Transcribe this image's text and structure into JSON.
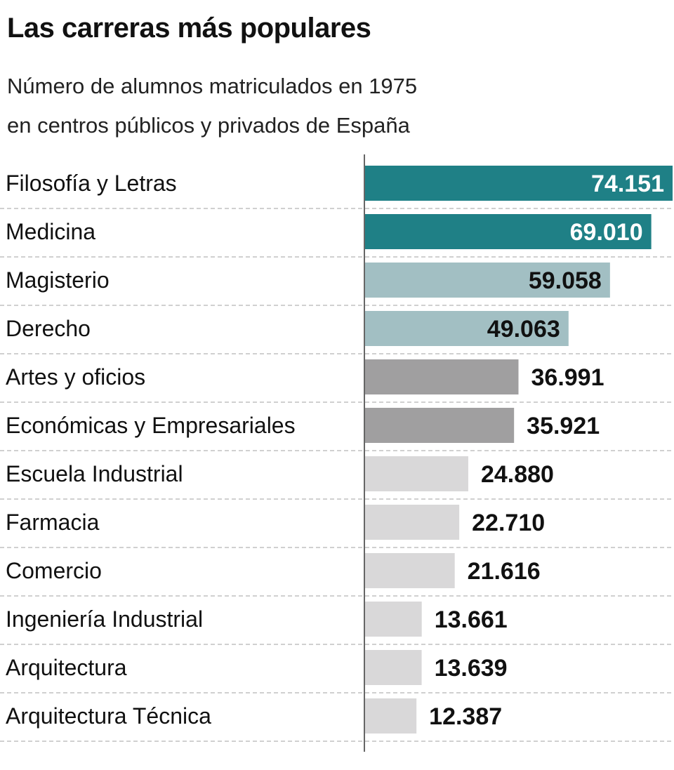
{
  "header": {
    "title": "Las carreras más populares",
    "subtitle_line1": "Número de alumnos matriculados en 1975",
    "subtitle_line2": "en centros públicos y privados de España"
  },
  "colors": {
    "top": "#1f8086",
    "second": "#a2bfc3",
    "third": "#a09fa0",
    "rest": "#d9d8d9",
    "gridline": "#b5b5b5",
    "axis": "#666666"
  },
  "chart_data": {
    "type": "bar",
    "orientation": "horizontal",
    "title": "Las carreras más populares",
    "subtitle": "Número de alumnos matriculados en 1975 en centros públicos y privados de España",
    "xlabel": "",
    "ylabel": "",
    "xlim": [
      0,
      74151
    ],
    "grid": "dashed row separators",
    "legend": "none",
    "categories": [
      "Filosofía y Letras",
      "Medicina",
      "Magisterio",
      "Derecho",
      "Artes y oficios",
      "Económicas y Empresariales",
      "Escuela Industrial",
      "Farmacia",
      "Comercio",
      "Ingeniería Industrial",
      "Arquitectura",
      "Arquitectura Técnica"
    ],
    "values": [
      74151,
      69010,
      59058,
      49063,
      36991,
      35921,
      24880,
      22710,
      21616,
      13661,
      13639,
      12387
    ],
    "value_labels": [
      "74.151",
      "69.010",
      "59.058",
      "49.063",
      "36.991",
      "35.921",
      "24.880",
      "22.710",
      "21.616",
      "13.661",
      "13.639",
      "12.387"
    ],
    "color_groups": [
      "top",
      "top",
      "second",
      "second",
      "third",
      "third",
      "rest",
      "rest",
      "rest",
      "rest",
      "rest",
      "rest"
    ],
    "label_inside": [
      true,
      true,
      true,
      true,
      false,
      false,
      false,
      false,
      false,
      false,
      false,
      false
    ],
    "label_color": [
      "#ffffff",
      "#ffffff",
      "#111111",
      "#111111",
      "#111111",
      "#111111",
      "#111111",
      "#111111",
      "#111111",
      "#111111",
      "#111111",
      "#111111"
    ]
  }
}
